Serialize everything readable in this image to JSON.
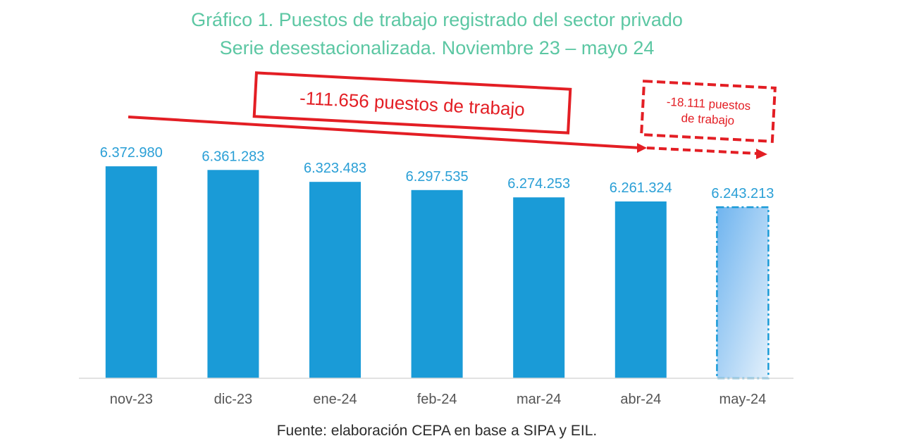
{
  "chart": {
    "title_line1": "Gráfico 1. Puestos de trabajo registrado del sector privado",
    "title_line2": "Serie desestacionalizada. Noviembre 23 – mayo 24",
    "source": "Fuente: elaboración CEPA en base a SIPA y EIL.",
    "annotation_main": "-111.656 puestos de trabajo",
    "annotation_last_line1": "-18.111 puestos",
    "annotation_last_line2": "de trabajo"
  },
  "colors": {
    "bar": "#1a9bd7",
    "value_label": "#2a9fd6",
    "title": "#5cc7a3",
    "annotation": "#e31e24",
    "axis_label": "#555555"
  },
  "chart_data": {
    "type": "bar",
    "categories": [
      "nov-23",
      "dic-23",
      "ene-24",
      "feb-24",
      "mar-24",
      "abr-24",
      "may-24"
    ],
    "values": [
      6372980,
      6361283,
      6323483,
      6297535,
      6274253,
      6261324,
      6243213
    ],
    "value_labels": [
      "6.372.980",
      "6.361.283",
      "6.323.483",
      "6.297.535",
      "6.274.253",
      "6.261.324",
      "6.243.213"
    ],
    "title": "Gráfico 1. Puestos de trabajo registrado del sector privado",
    "subtitle": "Serie desestacionalizada. Noviembre 23 – mayo 24",
    "ylim": [
      5700000,
      6400000
    ],
    "grid": false,
    "legend": "none",
    "highlighted_last_bar": true
  }
}
